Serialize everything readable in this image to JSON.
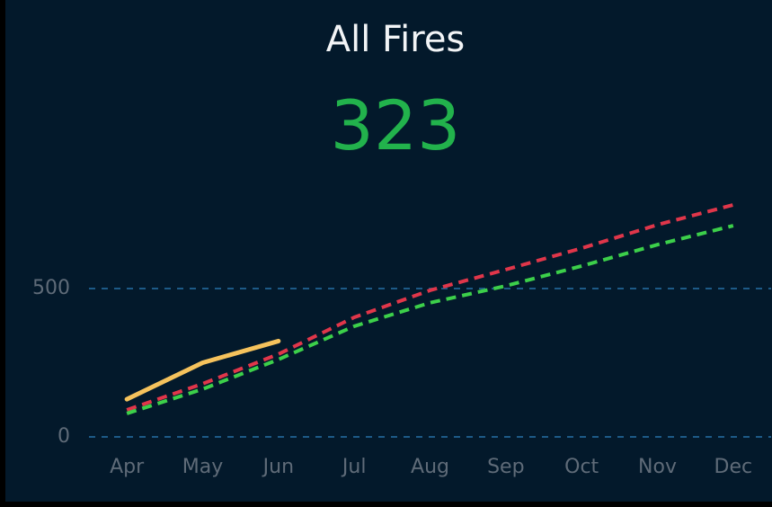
{
  "chart_data": {
    "type": "line",
    "title": "All Fires",
    "headline": 323,
    "headline_color": "#22b24c",
    "categories": [
      "Apr",
      "May",
      "Jun",
      "Jul",
      "Aug",
      "Sep",
      "Oct",
      "Nov",
      "Dec"
    ],
    "series": [
      {
        "color": "#e0364a",
        "dashed": true,
        "values": [
          91,
          179,
          279,
          403,
          494,
          564,
          636,
          715,
          782
        ]
      },
      {
        "color": "#3ccf4a",
        "dashed": true,
        "values": [
          79,
          161,
          261,
          373,
          452,
          509,
          576,
          648,
          712
        ]
      },
      {
        "color": "#f5c25c",
        "dashed": false,
        "values": [
          127,
          250,
          323,
          null,
          null,
          null,
          null,
          null,
          null
        ]
      }
    ],
    "ylim": [
      0,
      800
    ],
    "yticks": [
      0,
      500
    ],
    "grid": true
  }
}
